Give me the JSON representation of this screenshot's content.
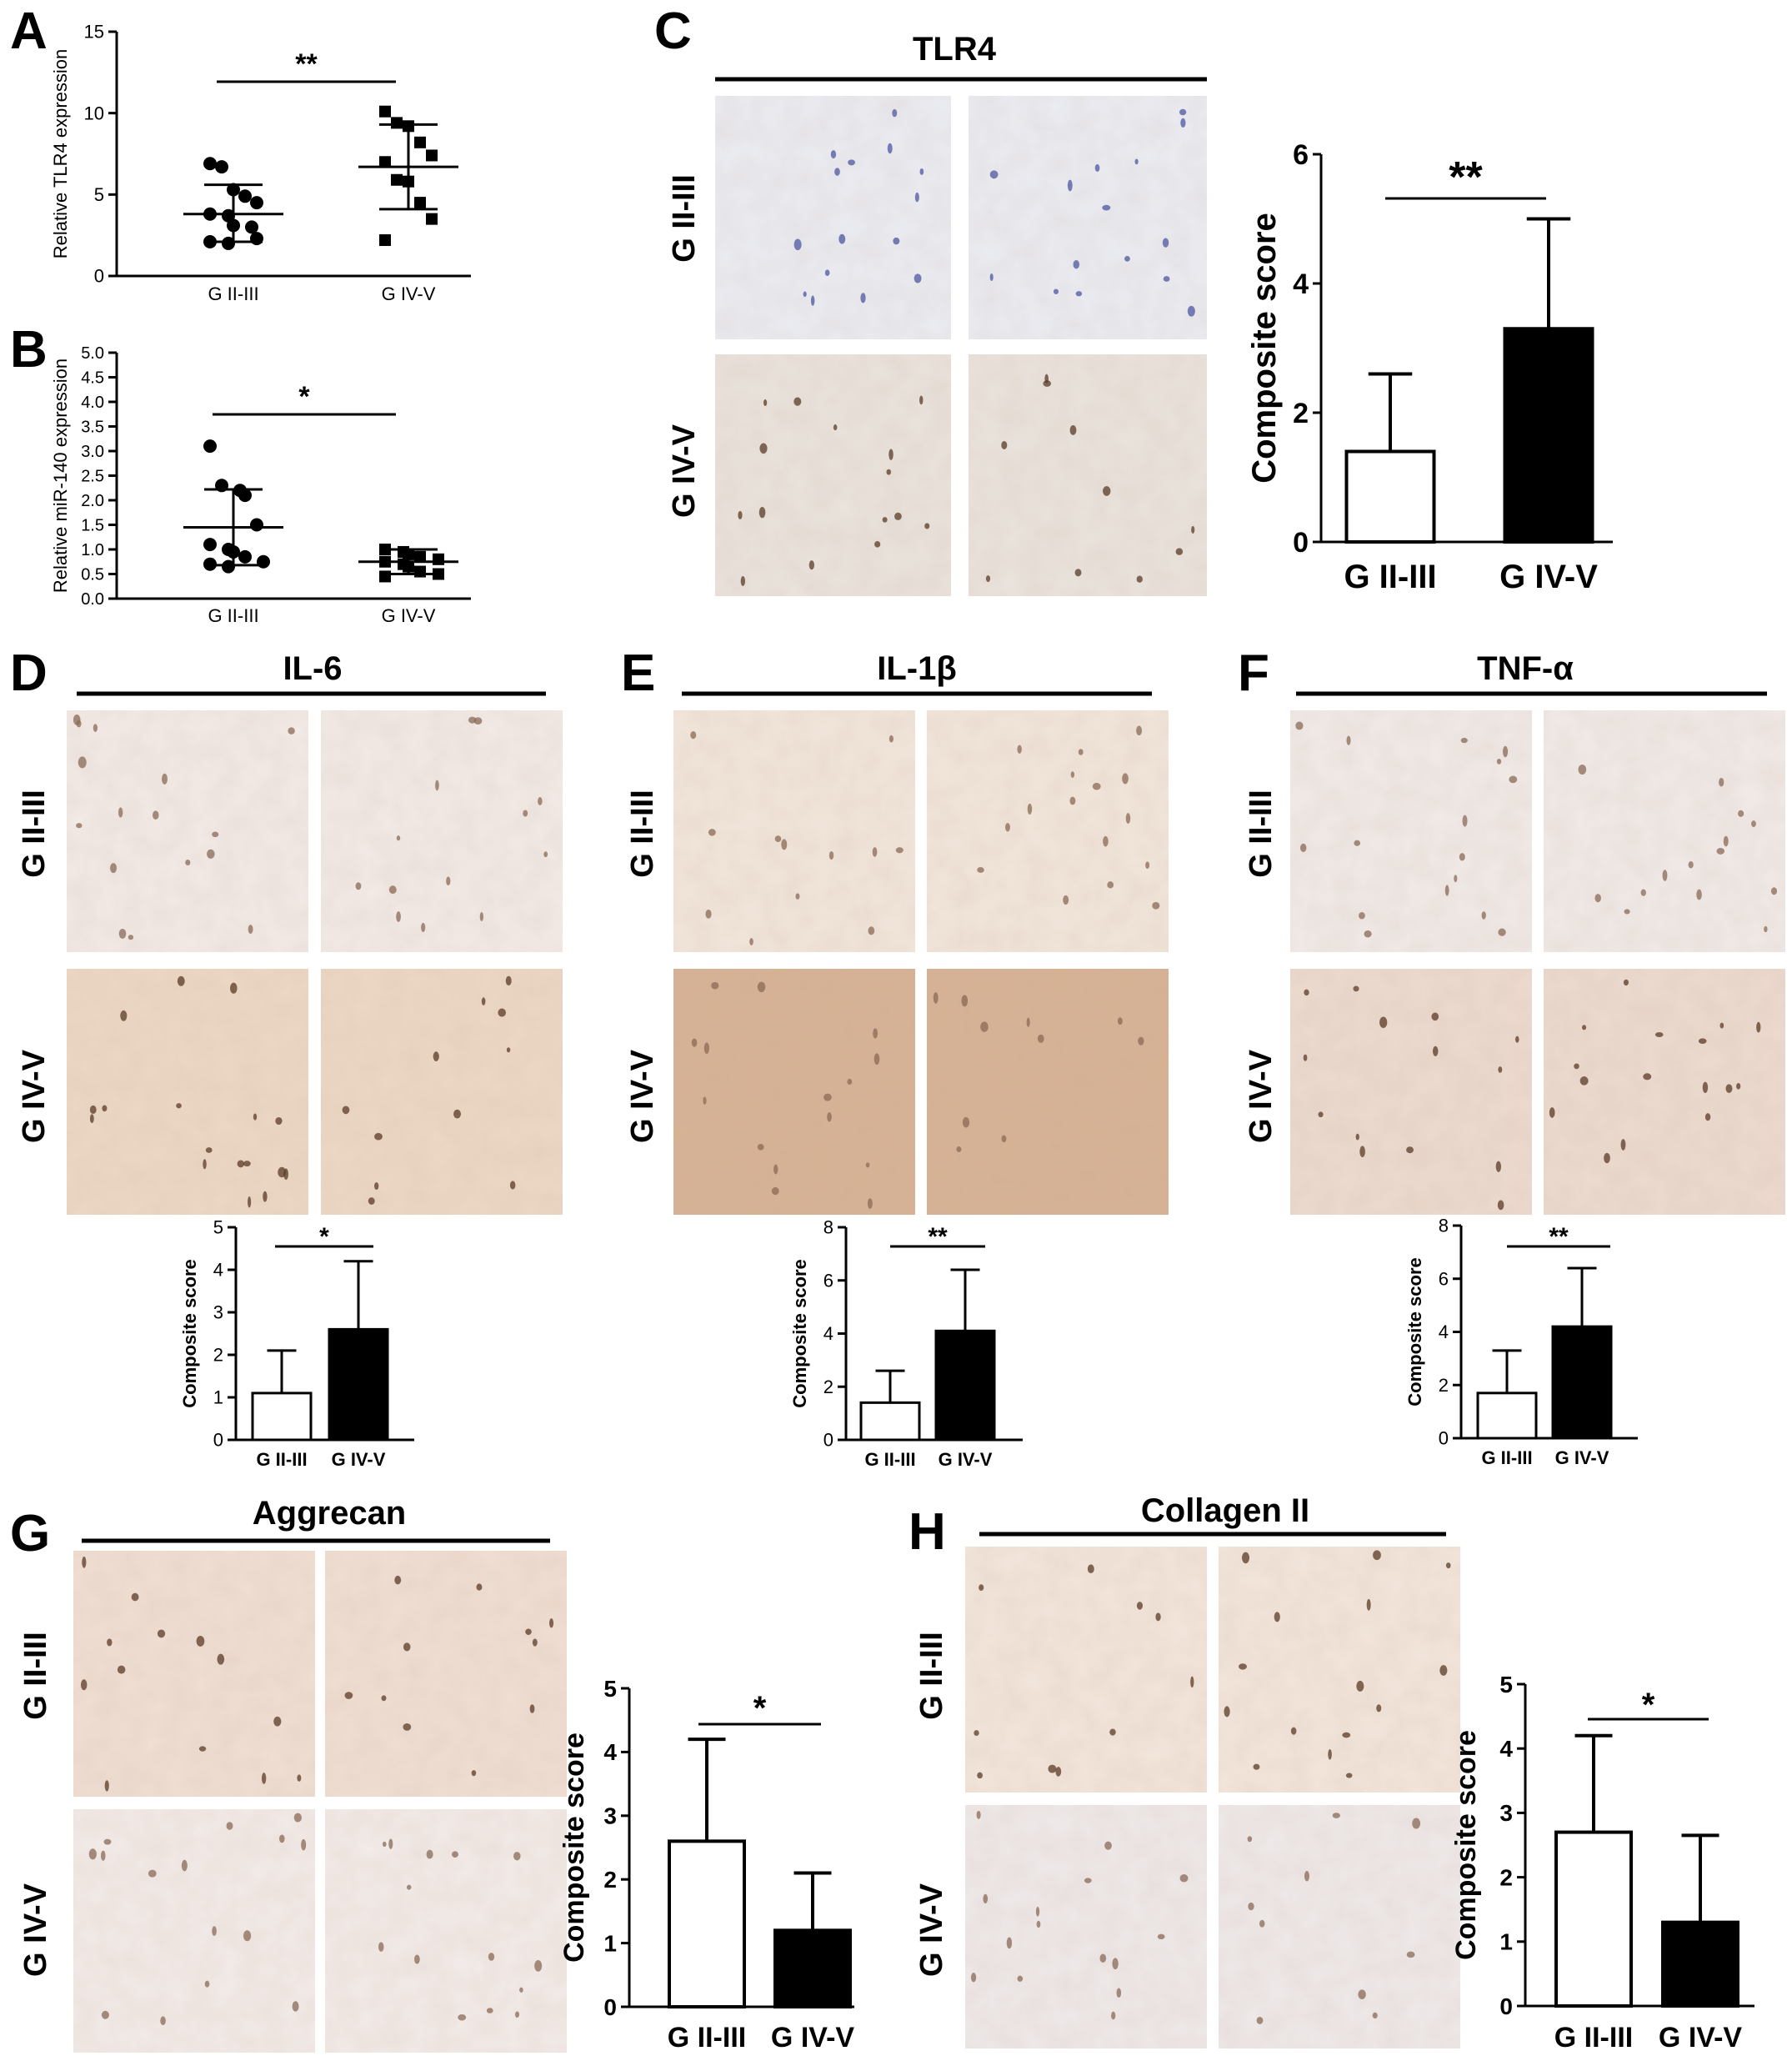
{
  "figure": {
    "panels": [
      {
        "id": "A",
        "label": "A"
      },
      {
        "id": "B",
        "label": "B"
      },
      {
        "id": "C",
        "label": "C",
        "title": "TLR4",
        "row_labels": [
          "G II-III",
          "G IV-V"
        ]
      },
      {
        "id": "D",
        "label": "D",
        "title": "IL-6",
        "row_labels": [
          "G II-III",
          "G IV-V"
        ]
      },
      {
        "id": "E",
        "label": "E",
        "title": "IL-1β",
        "row_labels": [
          "G II-III",
          "G IV-V"
        ]
      },
      {
        "id": "F",
        "label": "F",
        "title": "TNF-α",
        "row_labels": [
          "G II-III",
          "G IV-V"
        ]
      },
      {
        "id": "G",
        "label": "G",
        "title": "Aggrecan",
        "row_labels": [
          "G II-III",
          "G IV-V"
        ]
      },
      {
        "id": "H",
        "label": "H",
        "title": "Collagen II",
        "row_labels": [
          "G II-III",
          "G IV-V"
        ]
      }
    ],
    "image_tones": {
      "C": {
        "top": "#ebedf4",
        "bottom": "#eae4de"
      },
      "D": {
        "top": "#f3ebe8",
        "bottom": "#edd8c6"
      },
      "E": {
        "top": "#f2e6dc",
        "bottom": "#d7b295"
      },
      "F": {
        "top": "#f1ebe9",
        "bottom": "#eddbd0"
      },
      "G": {
        "top": "#f1dfd4",
        "bottom": "#f3ecea"
      },
      "H": {
        "top": "#f3e6dc",
        "bottom": "#efeaeb"
      }
    }
  },
  "chart_data": [
    {
      "panel": "A",
      "type": "scatter",
      "ylabel": "Relative TLR4 expression",
      "categories": [
        "G II-III",
        "G IV-V"
      ],
      "ylim": [
        0,
        15
      ],
      "yticks": [
        0,
        5,
        10,
        15
      ],
      "series": [
        {
          "values": [
            6.9,
            6.7,
            5.3,
            4.9,
            4.5,
            3.8,
            3.7,
            3.1,
            3.0,
            2.3,
            2.1,
            2.0
          ],
          "mean": 3.8,
          "sd_low": 2.1,
          "sd_high": 5.6
        },
        {
          "values": [
            10.1,
            9.4,
            9.2,
            8.2,
            7.4,
            7.0,
            5.9,
            5.8,
            4.5,
            3.5,
            2.2
          ],
          "mean": 6.7,
          "sd_low": 4.1,
          "sd_high": 9.3
        }
      ],
      "significance": "**"
    },
    {
      "panel": "B",
      "type": "scatter",
      "ylabel": "Relative miR-140 expression",
      "categories": [
        "G II-III",
        "G IV-V"
      ],
      "ylim": [
        0,
        5
      ],
      "yticks": [
        "0.0",
        "0.5",
        "1.0",
        "1.5",
        "2.0",
        "2.5",
        "3.0",
        "3.5",
        "4.0",
        "4.5",
        "5.0"
      ],
      "series": [
        {
          "values": [
            3.1,
            2.3,
            2.2,
            2.1,
            1.5,
            1.1,
            1.0,
            0.95,
            0.85,
            0.75,
            0.7,
            0.65
          ],
          "mean": 1.45,
          "sd_low": 0.68,
          "sd_high": 2.22
        },
        {
          "values": [
            1.0,
            0.95,
            0.9,
            0.85,
            0.8,
            0.75,
            0.7,
            0.65,
            0.55,
            0.5,
            0.45
          ],
          "mean": 0.75,
          "sd_low": 0.5,
          "sd_high": 1.0
        }
      ],
      "significance": "*"
    },
    {
      "panel": "C",
      "type": "bar",
      "ylabel": "Composite score",
      "categories": [
        "G II-III",
        "G IV-V"
      ],
      "values": [
        1.4,
        3.3
      ],
      "errors_upper": [
        2.6,
        5.0
      ],
      "ylim": [
        0,
        6
      ],
      "yticks": [
        0,
        2,
        4,
        6
      ],
      "significance": "**"
    },
    {
      "panel": "D",
      "type": "bar",
      "ylabel": "Composite score",
      "categories": [
        "G II-III",
        "G IV-V"
      ],
      "values": [
        1.1,
        2.6
      ],
      "errors_upper": [
        2.1,
        4.2
      ],
      "ylim": [
        0,
        5
      ],
      "yticks": [
        0,
        1,
        2,
        3,
        4,
        5
      ],
      "significance": "*"
    },
    {
      "panel": "E",
      "type": "bar",
      "ylabel": "Composite score",
      "categories": [
        "G II-III",
        "G IV-V"
      ],
      "values": [
        1.4,
        4.1
      ],
      "errors_upper": [
        2.6,
        6.4
      ],
      "ylim": [
        0,
        8
      ],
      "yticks": [
        0,
        2,
        4,
        6,
        8
      ],
      "significance": "**"
    },
    {
      "panel": "F",
      "type": "bar",
      "ylabel": "Composite score",
      "categories": [
        "G II-III",
        "G IV-V"
      ],
      "values": [
        1.7,
        4.2
      ],
      "errors_upper": [
        3.3,
        6.4
      ],
      "ylim": [
        0,
        8
      ],
      "yticks": [
        0,
        2,
        4,
        6,
        8
      ],
      "significance": "**"
    },
    {
      "panel": "G",
      "type": "bar",
      "ylabel": "Composite score",
      "categories": [
        "G II-III",
        "G IV-V"
      ],
      "values": [
        2.6,
        1.2
      ],
      "errors_upper": [
        4.2,
        2.1
      ],
      "ylim": [
        0,
        5
      ],
      "yticks": [
        0,
        1,
        2,
        3,
        4,
        5
      ],
      "significance": "*"
    },
    {
      "panel": "H",
      "type": "bar",
      "ylabel": "Composite score",
      "categories": [
        "G II-III",
        "G IV-V"
      ],
      "values": [
        2.7,
        1.3
      ],
      "errors_upper": [
        4.2,
        2.65
      ],
      "ylim": [
        0,
        5
      ],
      "yticks": [
        0,
        1,
        2,
        3,
        4,
        5
      ],
      "significance": "*"
    }
  ]
}
